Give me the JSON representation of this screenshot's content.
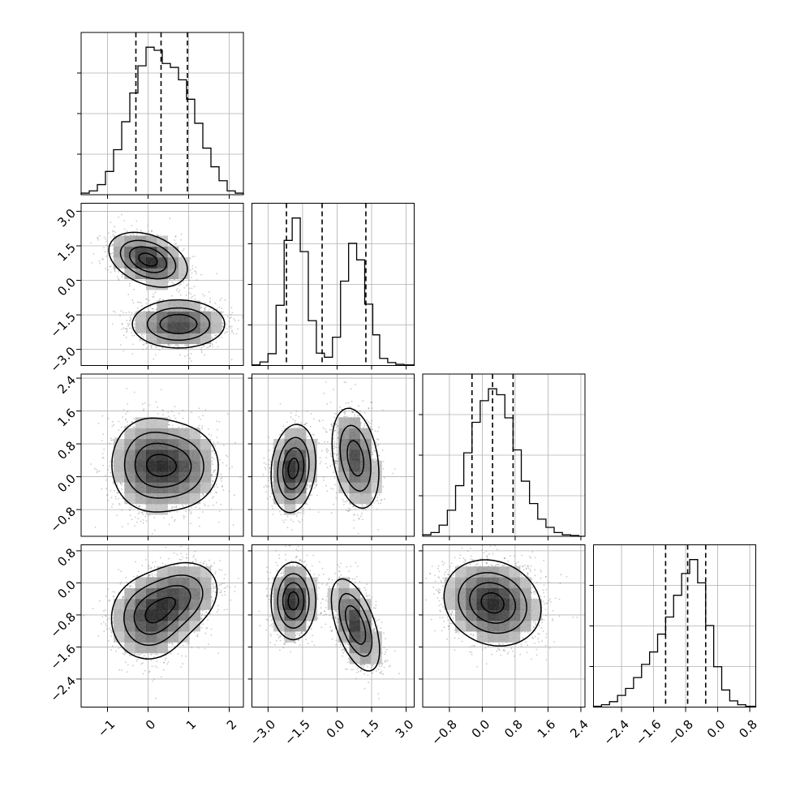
{
  "chart_data": {
    "type": "corner",
    "colors": {
      "line": "#000000",
      "grid": "#b0b0b0",
      "scatter": "#8a8a8a",
      "frame": "#000000"
    },
    "grid": true,
    "quantiles": [
      0.16,
      0.5,
      0.84
    ],
    "params": [
      {
        "range": [
          -1.65,
          2.35
        ],
        "ticks": [
          -1,
          0,
          1,
          2
        ],
        "tick_labels": [
          "−1",
          "0",
          "1",
          "2"
        ]
      },
      {
        "range": [
          -3.7,
          3.35
        ],
        "ticks": [
          -3.0,
          -1.5,
          0.0,
          1.5,
          3.0
        ],
        "tick_labels": [
          "−3.0",
          "−1.5",
          "0.0",
          "1.5",
          "3.0"
        ]
      },
      {
        "range": [
          -1.45,
          2.5
        ],
        "ticks": [
          -0.8,
          0.0,
          0.8,
          1.6,
          2.4
        ],
        "tick_labels": [
          "−0.8",
          "0.0",
          "0.8",
          "1.6",
          "2.4"
        ]
      },
      {
        "range": [
          -3.1,
          0.95
        ],
        "ticks": [
          -2.4,
          -1.6,
          -0.8,
          0.0,
          0.8
        ],
        "tick_labels": [
          "−2.4",
          "−1.6",
          "−0.8",
          "0.0",
          "0.8"
        ]
      }
    ],
    "histograms": [
      {
        "bin_edges": [
          -1.65,
          -1.45,
          -1.25,
          -1.05,
          -0.85,
          -0.65,
          -0.45,
          -0.25,
          -0.05,
          0.15,
          0.35,
          0.55,
          0.75,
          0.95,
          1.15,
          1.35,
          1.55,
          1.75,
          1.95,
          2.15,
          2.35
        ],
        "counts": [
          0.2,
          0.5,
          1.3,
          3.0,
          5.8,
          9.4,
          13.1,
          16.6,
          19.0,
          18.6,
          16.9,
          16.4,
          14.8,
          12.3,
          9.2,
          6.0,
          3.6,
          1.8,
          0.5,
          0.2
        ],
        "quantile_values": [
          -0.3,
          0.32,
          0.97
        ]
      },
      {
        "bin_edges": [
          -3.7,
          -3.35,
          -3.0,
          -2.65,
          -2.3,
          -1.95,
          -1.6,
          -1.25,
          -0.9,
          -0.55,
          -0.2,
          0.15,
          0.5,
          0.85,
          1.2,
          1.55,
          1.85,
          2.2,
          2.55,
          2.9,
          3.35
        ],
        "counts": [
          0.1,
          0.6,
          2.0,
          10.2,
          21.2,
          25.0,
          19.3,
          7.6,
          2.1,
          1.4,
          4.8,
          14.3,
          20.7,
          17.9,
          10.4,
          5.2,
          1.2,
          0.5,
          0.2,
          0.1
        ],
        "quantile_values": [
          -2.2,
          -0.65,
          1.25
        ]
      },
      {
        "bin_edges": [
          -1.45,
          -1.25,
          -1.05,
          -0.85,
          -0.65,
          -0.45,
          -0.25,
          -0.05,
          0.15,
          0.35,
          0.55,
          0.75,
          0.95,
          1.15,
          1.35,
          1.55,
          1.75,
          1.95,
          2.15,
          2.35,
          2.5
        ],
        "counts": [
          0.2,
          0.5,
          1.5,
          3.5,
          6.8,
          11.2,
          15.3,
          18.2,
          19.8,
          19.0,
          15.9,
          11.6,
          7.4,
          4.4,
          2.3,
          1.2,
          0.5,
          0.2,
          0.1,
          0.0
        ],
        "quantile_values": [
          -0.25,
          0.25,
          0.75
        ]
      },
      {
        "bin_edges": [
          -3.1,
          -2.9,
          -2.7,
          -2.5,
          -2.3,
          -2.1,
          -1.9,
          -1.7,
          -1.5,
          -1.3,
          -1.1,
          -0.9,
          -0.7,
          -0.5,
          -0.3,
          -0.1,
          0.1,
          0.3,
          0.5,
          0.7,
          0.95
        ],
        "counts": [
          0.1,
          0.3,
          0.7,
          1.5,
          2.4,
          3.8,
          5.5,
          7.1,
          9.4,
          11.6,
          14.4,
          17.2,
          19.0,
          16.0,
          10.5,
          5.2,
          2.2,
          0.8,
          0.3,
          0.1
        ],
        "quantile_values": [
          -1.3,
          -0.75,
          -0.3
        ]
      }
    ],
    "joint_modes": {
      "1_0": [
        {
          "center": [
            0.0,
            0.9
          ],
          "sd": [
            0.45,
            0.55
          ],
          "rho": -0.35,
          "weight": 0.5
        },
        {
          "center": [
            0.75,
            -1.9
          ],
          "sd": [
            0.55,
            0.5
          ],
          "rho": 0.0,
          "weight": 0.5
        }
      ],
      "2_0": [
        {
          "center": [
            0.0,
            0.3
          ],
          "sd": [
            0.45,
            0.55
          ],
          "rho": 0.0,
          "weight": 0.5
        },
        {
          "center": [
            0.75,
            0.25
          ],
          "sd": [
            0.5,
            0.5
          ],
          "rho": 0.0,
          "weight": 0.5
        }
      ],
      "2_1": [
        {
          "center": [
            -1.9,
            0.2
          ],
          "sd": [
            0.45,
            0.5
          ],
          "rho": 0.15,
          "weight": 0.5
        },
        {
          "center": [
            0.8,
            0.45
          ],
          "sd": [
            0.5,
            0.6
          ],
          "rho": -0.3,
          "weight": 0.5
        }
      ],
      "3_0": [
        {
          "center": [
            0.0,
            -0.9
          ],
          "sd": [
            0.45,
            0.5
          ],
          "rho": 0.0,
          "weight": 0.5
        },
        {
          "center": [
            0.7,
            -0.4
          ],
          "sd": [
            0.5,
            0.45
          ],
          "rho": 0.25,
          "weight": 0.5
        }
      ],
      "3_1": [
        {
          "center": [
            -1.9,
            -0.45
          ],
          "sd": [
            0.45,
            0.45
          ],
          "rho": 0.0,
          "weight": 0.5
        },
        {
          "center": [
            0.8,
            -1.05
          ],
          "sd": [
            0.5,
            0.55
          ],
          "rho": -0.55,
          "weight": 0.5
        }
      ],
      "3_2": [
        {
          "center": [
            0.25,
            -0.5
          ],
          "sd": [
            0.55,
            0.5
          ],
          "rho": -0.15,
          "weight": 1.0
        }
      ]
    }
  }
}
